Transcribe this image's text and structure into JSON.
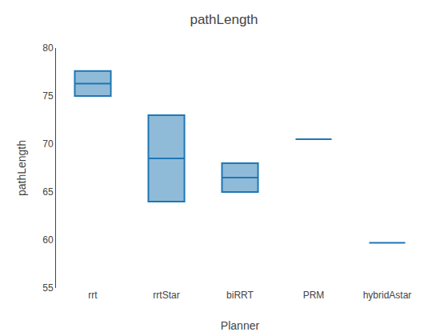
{
  "chart_data": {
    "type": "box",
    "title": "pathLength",
    "xlabel": "Planner",
    "ylabel": "pathLength",
    "categories": [
      "rrt",
      "rrtStar",
      "biRRT",
      "PRM",
      "hybridAstar"
    ],
    "q1": [
      75.0,
      64.0,
      65.0,
      null,
      null
    ],
    "median": [
      76.3,
      68.5,
      66.5,
      70.5,
      59.7
    ],
    "q3": [
      77.6,
      73.0,
      68.0,
      null,
      null
    ],
    "ylim": [
      55,
      80
    ],
    "yticks": [
      55,
      60,
      65,
      70,
      75,
      80
    ],
    "grid": false
  }
}
